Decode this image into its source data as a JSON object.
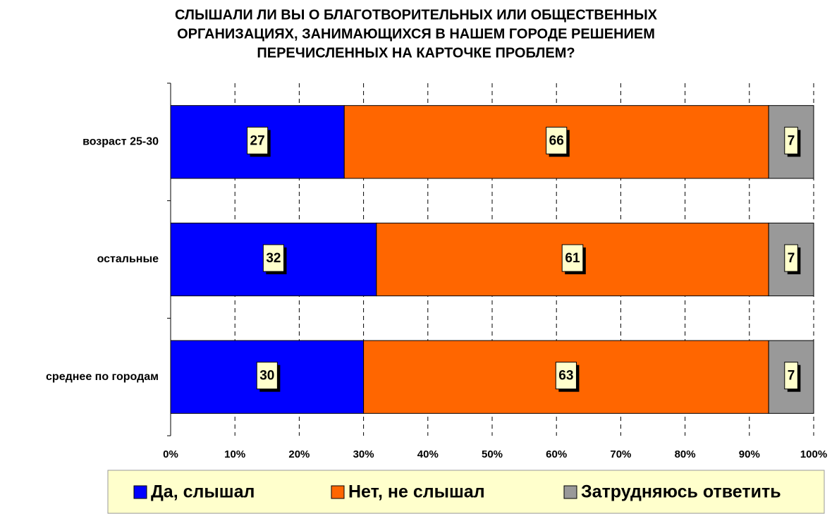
{
  "chart_data": {
    "type": "stacked_bar_horizontal",
    "title": [
      "СЛЫШАЛИ ЛИ ВЫ О БЛАГОТВОРИТЕЛЬНЫХ ИЛИ ОБЩЕСТВЕННЫХ",
      "ОРГАНИЗАЦИЯХ, ЗАНИМАЮЩИХСЯ В НАШЕМ ГОРОДЕ РЕШЕНИЕМ",
      "ПЕРЕЧИСЛЕННЫХ НА КАРТОЧКЕ ПРОБЛЕМ?"
    ],
    "categories": [
      "возраст 25-30",
      "остальные",
      "среднее по городам"
    ],
    "series": [
      {
        "name": "Да, слышал",
        "color": "#0000ff",
        "values": [
          27,
          32,
          30
        ]
      },
      {
        "name": "Нет, не слышал",
        "color": "#ff6600",
        "values": [
          66,
          61,
          63
        ]
      },
      {
        "name": "Затрудняюсь ответить",
        "color": "#999999",
        "values": [
          7,
          7,
          7
        ]
      }
    ],
    "xlim": [
      0,
      100
    ],
    "xticks": [
      {
        "value": 0,
        "label": "0%"
      },
      {
        "value": 10,
        "label": "10%"
      },
      {
        "value": 20,
        "label": "20%"
      },
      {
        "value": 30,
        "label": "30%"
      },
      {
        "value": 40,
        "label": "40%"
      },
      {
        "value": 50,
        "label": "50%"
      },
      {
        "value": 60,
        "label": "60%"
      },
      {
        "value": 70,
        "label": "70%"
      },
      {
        "value": 80,
        "label": "80%"
      },
      {
        "value": 90,
        "label": "90%"
      },
      {
        "value": 100,
        "label": "100%"
      }
    ],
    "grid": true,
    "legend": "bottom"
  }
}
